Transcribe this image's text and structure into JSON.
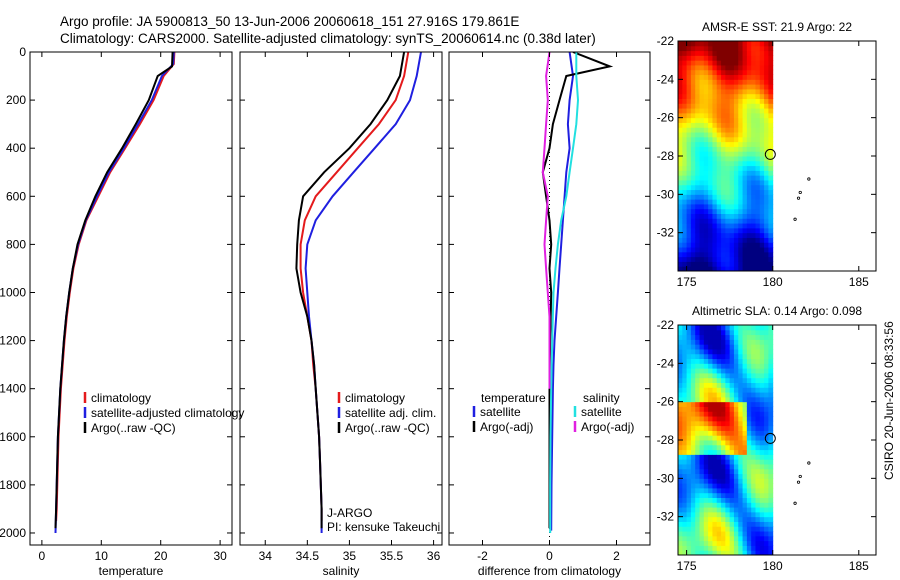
{
  "header": {
    "line1": "Argo profile: JA 5900813_50 13-Jun-2006 20060618_151 27.916S 179.861E",
    "line2": "Climatology: CARS2000. Satellite-adjusted climatology: synTS_20060614.nc (0.38d later)"
  },
  "stamp": "CSIRO 20-Jun-2006 08:33:56",
  "colors": {
    "climatology": "#e41a1c",
    "satellite": "#1f1fe0",
    "argo": "#000000",
    "cyan": "#22e0e0",
    "magenta": "#e020e0"
  },
  "chart_data": [
    {
      "type": "line",
      "panel": "temperature",
      "xlabel": "temperature",
      "ylabel": "",
      "xlim": [
        -2,
        32
      ],
      "ylim": [
        2050,
        0
      ],
      "xticks": [
        0,
        10,
        20,
        30
      ],
      "yticks": [
        0,
        200,
        400,
        600,
        800,
        1000,
        1200,
        1400,
        1600,
        1800,
        2000
      ],
      "legend": [
        "climatology",
        "satellite-adjusted climatology",
        "Argo(..raw -QC)"
      ],
      "series": [
        {
          "name": "climatology",
          "color": "#e41a1c",
          "points": [
            [
              22.3,
              0
            ],
            [
              22.2,
              50
            ],
            [
              20.5,
              100
            ],
            [
              18.8,
              200
            ],
            [
              16.5,
              300
            ],
            [
              14,
              400
            ],
            [
              11.5,
              500
            ],
            [
              9.5,
              600
            ],
            [
              7.5,
              700
            ],
            [
              6.2,
              800
            ],
            [
              5.3,
              900
            ],
            [
              4.7,
              1000
            ],
            [
              4.2,
              1100
            ],
            [
              3.8,
              1200
            ],
            [
              3.5,
              1300
            ],
            [
              3.2,
              1400
            ],
            [
              3,
              1500
            ],
            [
              2.8,
              1600
            ],
            [
              2.7,
              1700
            ],
            [
              2.6,
              1800
            ],
            [
              2.5,
              1900
            ],
            [
              2.4,
              1950
            ]
          ]
        },
        {
          "name": "satellite-adjusted climatology",
          "color": "#1f1fe0",
          "points": [
            [
              22.2,
              0
            ],
            [
              22.1,
              50
            ],
            [
              20.2,
              100
            ],
            [
              18.5,
              200
            ],
            [
              16.2,
              300
            ],
            [
              13.8,
              400
            ],
            [
              11.3,
              500
            ],
            [
              9.3,
              600
            ],
            [
              7.4,
              700
            ],
            [
              6.1,
              800
            ],
            [
              5.2,
              900
            ],
            [
              4.6,
              1000
            ],
            [
              4.1,
              1100
            ],
            [
              3.7,
              1200
            ],
            [
              3.4,
              1300
            ],
            [
              3.1,
              1400
            ],
            [
              2.9,
              1500
            ],
            [
              2.7,
              1600
            ],
            [
              2.6,
              1700
            ],
            [
              2.5,
              1800
            ],
            [
              2.4,
              1900
            ],
            [
              2.3,
              2000
            ]
          ]
        },
        {
          "name": "Argo(..raw -QC)",
          "color": "#000000",
          "points": [
            [
              22.0,
              0
            ],
            [
              21.9,
              60
            ],
            [
              19.5,
              100
            ],
            [
              18,
              200
            ],
            [
              15.8,
              300
            ],
            [
              13.5,
              400
            ],
            [
              11,
              500
            ],
            [
              9,
              600
            ],
            [
              7.3,
              700
            ],
            [
              6,
              800
            ],
            [
              5.2,
              900
            ],
            [
              4.6,
              1000
            ],
            [
              4.1,
              1100
            ],
            [
              3.7,
              1200
            ],
            [
              3.4,
              1300
            ],
            [
              3.1,
              1400
            ],
            [
              2.9,
              1500
            ],
            [
              2.7,
              1600
            ],
            [
              2.6,
              1700
            ],
            [
              2.5,
              1800
            ],
            [
              2.4,
              1900
            ],
            [
              2.3,
              1980
            ]
          ]
        }
      ]
    },
    {
      "type": "line",
      "panel": "salinity",
      "xlabel": "salinity",
      "ylabel": "",
      "xlim": [
        33.7,
        36.1
      ],
      "ylim": [
        2050,
        0
      ],
      "xticks": [
        34,
        34.5,
        35,
        35.5,
        36
      ],
      "legend": [
        "climatology",
        "satellite adj. clim.",
        "Argo(..raw -QC)"
      ],
      "annotation": [
        "J-ARGO",
        "PI: kensuke Takeuchi"
      ],
      "series": [
        {
          "name": "climatology",
          "color": "#e41a1c",
          "points": [
            [
              35.7,
              0
            ],
            [
              35.65,
              100
            ],
            [
              35.55,
              200
            ],
            [
              35.35,
              300
            ],
            [
              35.1,
              400
            ],
            [
              34.85,
              500
            ],
            [
              34.6,
              600
            ],
            [
              34.47,
              700
            ],
            [
              34.42,
              800
            ],
            [
              34.42,
              900
            ],
            [
              34.45,
              1000
            ],
            [
              34.5,
              1100
            ],
            [
              34.55,
              1200
            ],
            [
              34.57,
              1300
            ],
            [
              34.6,
              1400
            ],
            [
              34.62,
              1500
            ],
            [
              34.64,
              1600
            ],
            [
              34.65,
              1700
            ],
            [
              34.66,
              1800
            ],
            [
              34.67,
              1900
            ],
            [
              34.67,
              1950
            ]
          ]
        },
        {
          "name": "satellite adj. clim.",
          "color": "#1f1fe0",
          "points": [
            [
              35.85,
              0
            ],
            [
              35.8,
              100
            ],
            [
              35.72,
              200
            ],
            [
              35.55,
              300
            ],
            [
              35.3,
              400
            ],
            [
              35.05,
              500
            ],
            [
              34.8,
              600
            ],
            [
              34.6,
              700
            ],
            [
              34.5,
              800
            ],
            [
              34.48,
              900
            ],
            [
              34.5,
              1000
            ],
            [
              34.52,
              1100
            ],
            [
              34.55,
              1200
            ],
            [
              34.58,
              1300
            ],
            [
              34.6,
              1400
            ],
            [
              34.62,
              1500
            ],
            [
              34.64,
              1600
            ],
            [
              34.65,
              1700
            ],
            [
              34.66,
              1800
            ],
            [
              34.67,
              1900
            ],
            [
              34.67,
              2000
            ]
          ]
        },
        {
          "name": "Argo(..raw -QC)",
          "color": "#000000",
          "points": [
            [
              35.65,
              0
            ],
            [
              35.6,
              100
            ],
            [
              35.45,
              200
            ],
            [
              35.25,
              300
            ],
            [
              35.0,
              400
            ],
            [
              34.7,
              500
            ],
            [
              34.45,
              600
            ],
            [
              34.4,
              700
            ],
            [
              34.38,
              800
            ],
            [
              34.37,
              900
            ],
            [
              34.42,
              1000
            ],
            [
              34.5,
              1100
            ],
            [
              34.55,
              1200
            ],
            [
              34.58,
              1300
            ],
            [
              34.6,
              1400
            ],
            [
              34.62,
              1500
            ],
            [
              34.64,
              1600
            ],
            [
              34.65,
              1700
            ],
            [
              34.66,
              1800
            ],
            [
              34.67,
              1900
            ],
            [
              34.67,
              1980
            ]
          ]
        }
      ]
    },
    {
      "type": "line",
      "panel": "difference",
      "xlabel": "difference from climatology",
      "ylabel": "",
      "xlim": [
        -3,
        3
      ],
      "ylim": [
        2050,
        0
      ],
      "xticks": [
        -2,
        0,
        2
      ],
      "legend_groups": [
        {
          "title": "temperature",
          "items": [
            "satellite",
            "Argo(-adj)"
          ]
        },
        {
          "title": "salinity",
          "items": [
            "satellite",
            "Argo(-adj)"
          ]
        }
      ],
      "series": [
        {
          "name": "temperature satellite",
          "color": "#1f1fe0",
          "points": [
            [
              0.6,
              0
            ],
            [
              0.7,
              100
            ],
            [
              0.6,
              200
            ],
            [
              0.55,
              300
            ],
            [
              0.6,
              400
            ],
            [
              0.5,
              500
            ],
            [
              0.45,
              600
            ],
            [
              0.4,
              700
            ],
            [
              0.35,
              800
            ],
            [
              0.3,
              900
            ],
            [
              0.25,
              1000
            ],
            [
              0.2,
              1100
            ],
            [
              0.15,
              1200
            ],
            [
              0.12,
              1300
            ],
            [
              0.1,
              1400
            ],
            [
              0.08,
              1600
            ],
            [
              0.06,
              1800
            ],
            [
              0.05,
              1990
            ]
          ]
        },
        {
          "name": "temperature Argo(-adj)",
          "color": "#000000",
          "points": [
            [
              0.7,
              0
            ],
            [
              1.8,
              60
            ],
            [
              0.5,
              100
            ],
            [
              0.3,
              200
            ],
            [
              0.1,
              300
            ],
            [
              0.0,
              400
            ],
            [
              -0.2,
              500
            ],
            [
              -0.1,
              600
            ],
            [
              0.0,
              700
            ],
            [
              0.05,
              800
            ],
            [
              0.0,
              900
            ],
            [
              0.05,
              1000
            ],
            [
              0.02,
              1200
            ],
            [
              0.0,
              1400
            ],
            [
              0.0,
              1600
            ],
            [
              0.0,
              1980
            ]
          ]
        },
        {
          "name": "salinity satellite",
          "color": "#22e0e0",
          "points": [
            [
              0.8,
              0
            ],
            [
              0.8,
              100
            ],
            [
              0.85,
              200
            ],
            [
              0.8,
              300
            ],
            [
              0.7,
              400
            ],
            [
              0.6,
              500
            ],
            [
              0.5,
              600
            ],
            [
              0.35,
              700
            ],
            [
              0.25,
              800
            ],
            [
              0.18,
              900
            ],
            [
              0.12,
              1000
            ],
            [
              0.08,
              1200
            ],
            [
              0.05,
              1400
            ],
            [
              0.03,
              1600
            ],
            [
              0.02,
              1800
            ],
            [
              0.02,
              2000
            ]
          ]
        },
        {
          "name": "salinity Argo(-adj)",
          "color": "#e020e0",
          "points": [
            [
              0.0,
              0
            ],
            [
              -0.1,
              100
            ],
            [
              -0.05,
              200
            ],
            [
              -0.1,
              300
            ],
            [
              -0.15,
              400
            ],
            [
              -0.2,
              500
            ],
            [
              -0.05,
              600
            ],
            [
              -0.1,
              700
            ],
            [
              -0.15,
              800
            ],
            [
              -0.1,
              900
            ],
            [
              -0.05,
              1000
            ],
            [
              0.0,
              1100
            ],
            [
              0.0,
              1200
            ],
            [
              0.0,
              1400
            ]
          ]
        }
      ]
    },
    {
      "type": "heatmap",
      "panel": "sst-map",
      "title": "AMSR-E SST: 21.9 Argo: 22",
      "xlim": [
        174.5,
        186
      ],
      "ylim": [
        -34,
        -22
      ],
      "xticks": [
        175,
        180,
        185
      ],
      "yticks": [
        -22,
        -24,
        -26,
        -28,
        -30,
        -32
      ],
      "argo_position": [
        179.861,
        -27.916
      ],
      "data_extent_lon": [
        174.5,
        180
      ]
    },
    {
      "type": "heatmap",
      "panel": "sla-map",
      "title": "Altimetric SLA: 0.14 Argo: 0.098",
      "xlim": [
        174.5,
        186
      ],
      "ylim": [
        -34,
        -22
      ],
      "xticks": [
        175,
        180,
        185
      ],
      "yticks": [
        -22,
        -24,
        -26,
        -28,
        -30,
        -32
      ],
      "argo_position": [
        179.861,
        -27.916
      ],
      "data_extent_lon": [
        174.5,
        180
      ]
    }
  ]
}
